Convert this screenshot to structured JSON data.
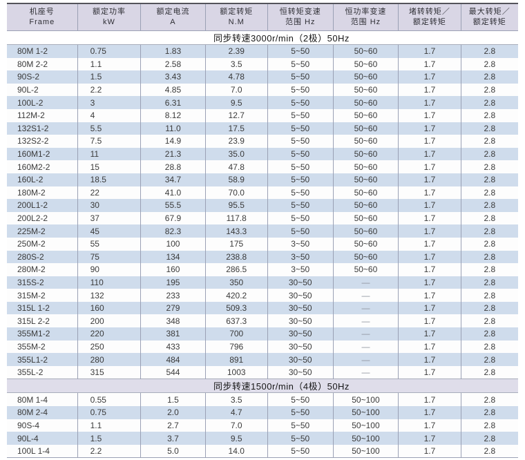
{
  "table": {
    "columns": [
      {
        "line1": "机座号",
        "line2": "Frame"
      },
      {
        "line1": "额定功率",
        "line2": "kW"
      },
      {
        "line1": "额定电流",
        "line2": "A"
      },
      {
        "line1": "额定转矩",
        "line2": "N.M"
      },
      {
        "line1": "恒转矩变速",
        "line2": "范围 Hz"
      },
      {
        "line1": "恒功率变速",
        "line2": "范围 Hz"
      },
      {
        "line1": "堵转转矩／",
        "line2": "额定转矩"
      },
      {
        "line1": "最大转矩／",
        "line2": "额定转矩"
      }
    ],
    "sections": [
      {
        "title": "同步转速3000r/min（2极）50Hz",
        "first_row_shaded": true,
        "rows": [
          [
            "80M 1-2",
            "0.75",
            "1.83",
            "2.39",
            "5~50",
            "50~60",
            "1.7",
            "2.8"
          ],
          [
            "80M 2-2",
            "1.1",
            "2.58",
            "3.5",
            "5~50",
            "50~60",
            "1.7",
            "2.8"
          ],
          [
            "90S-2",
            "1.5",
            "3.43",
            "4.78",
            "5~50",
            "50~60",
            "1.7",
            "2.8"
          ],
          [
            "90L-2",
            "2.2",
            "4.85",
            "7.0",
            "5~50",
            "50~60",
            "1.7",
            "2.8"
          ],
          [
            "100L-2",
            "3",
            "6.31",
            "9.5",
            "5~50",
            "50~60",
            "1.7",
            "2.8"
          ],
          [
            "112M-2",
            "4",
            "8.12",
            "12.7",
            "5~50",
            "50~60",
            "1.7",
            "2.8"
          ],
          [
            "132S1-2",
            "5.5",
            "11.0",
            "17.5",
            "5~50",
            "50~60",
            "1.7",
            "2.8"
          ],
          [
            "132S2-2",
            "7.5",
            "14.9",
            "23.9",
            "5~50",
            "50~60",
            "1.7",
            "2.8"
          ],
          [
            "160M1-2",
            "11",
            "21.3",
            "35.0",
            "5~50",
            "50~60",
            "1.7",
            "2.8"
          ],
          [
            "160M2-2",
            "15",
            "28.8",
            "47.8",
            "5~50",
            "50~60",
            "1.7",
            "2.8"
          ],
          [
            "160L-2",
            "18.5",
            "34.7",
            "58.9",
            "5~50",
            "50~60",
            "1.7",
            "2.8"
          ],
          [
            "180M-2",
            "22",
            "41.0",
            "70.0",
            "5~50",
            "50~60",
            "1.7",
            "2.8"
          ],
          [
            "200L1-2",
            "30",
            "55.5",
            "95.5",
            "5~50",
            "50~60",
            "1.7",
            "2.8"
          ],
          [
            "200L2-2",
            "37",
            "67.9",
            "117.8",
            "5~50",
            "50~60",
            "1.7",
            "2.8"
          ],
          [
            "225M-2",
            "45",
            "82.3",
            "143.3",
            "5~50",
            "50~60",
            "1.7",
            "2.8"
          ],
          [
            "250M-2",
            "55",
            "100",
            "175",
            "3~50",
            "50~60",
            "1.7",
            "2.8"
          ],
          [
            "280S-2",
            "75",
            "134",
            "238.8",
            "3~50",
            "50~60",
            "1.7",
            "2.8"
          ],
          [
            "280M-2",
            "90",
            "160",
            "286.5",
            "3~50",
            "50~60",
            "1.7",
            "2.8"
          ],
          [
            "315S-2",
            "110",
            "195",
            "350",
            "30~50",
            "—",
            "1.7",
            "2.8"
          ],
          [
            "315M-2",
            "132",
            "233",
            "420.2",
            "30~50",
            "—",
            "1.7",
            "2.8"
          ],
          [
            "315L 1-2",
            "160",
            "279",
            "509.3",
            "30~50",
            "—",
            "1.7",
            "2.8"
          ],
          [
            "315L 2-2",
            "200",
            "348",
            "637.3",
            "30~50",
            "—",
            "1.7",
            "2.8"
          ],
          [
            "355M1-2",
            "220",
            "381",
            "700",
            "30~50",
            "—",
            "1.7",
            "2.8"
          ],
          [
            "355M-2",
            "250",
            "433",
            "796",
            "30~50",
            "—",
            "1.7",
            "2.8"
          ],
          [
            "355L1-2",
            "280",
            "484",
            "891",
            "30~50",
            "—",
            "1.7",
            "2.8"
          ],
          [
            "355L-2",
            "315",
            "544",
            "1003",
            "30~50",
            "—",
            "1.7",
            "2.8"
          ]
        ]
      },
      {
        "title": "同步转速1500r/min（4极）50Hz",
        "first_row_shaded": false,
        "rows": [
          [
            "80M 1-4",
            "0.55",
            "1.5",
            "3.5",
            "5~50",
            "50~100",
            "1.7",
            "2.8"
          ],
          [
            "80M 2-4",
            "0.75",
            "2.0",
            "4.7",
            "5~50",
            "50~100",
            "1.7",
            "2.8"
          ],
          [
            "90S-4",
            "1.1",
            "2.7",
            "7.0",
            "5~50",
            "50~100",
            "1.7",
            "2.8"
          ],
          [
            "90L-4",
            "1.5",
            "3.7",
            "9.5",
            "5~50",
            "50~100",
            "1.7",
            "2.8"
          ],
          [
            "100L 1-4",
            "2.2",
            "5.0",
            "14.0",
            "5~50",
            "50~100",
            "1.7",
            "2.8"
          ]
        ]
      }
    ]
  },
  "colors": {
    "header_bg": "#d9d6e5",
    "stripe_bg": "#cfdcec",
    "section_band_bg": [
      "#ffffff",
      "#dfddea"
    ],
    "divider": "#9aa0b4",
    "top_border": "#53535a",
    "text": "#3a3a3a"
  }
}
